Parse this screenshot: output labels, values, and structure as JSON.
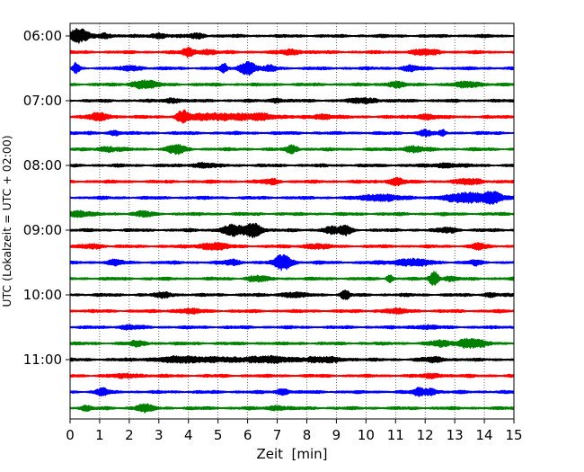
{
  "chart_data": {
    "type": "line",
    "title": "",
    "xlabel": "Zeit  [min]",
    "ylabel": "UTC (Lokalzeit = UTC + 02:00)",
    "xlim": [
      0,
      15
    ],
    "x_ticks": [
      0,
      1,
      2,
      3,
      4,
      5,
      6,
      7,
      8,
      9,
      10,
      11,
      12,
      13,
      14,
      15
    ],
    "y_tick_labels": [
      "06:00",
      "07:00",
      "08:00",
      "09:00",
      "10:00",
      "11:00"
    ],
    "y_tick_rows": [
      0,
      4,
      8,
      12,
      16,
      20
    ],
    "grid": {
      "vertical": true,
      "style": "dotted"
    },
    "row_interval_minutes": 15,
    "row_start": "06:00",
    "row_colors": [
      "#000000",
      "#ff0000",
      "#0000ff",
      "#008000"
    ],
    "series": [
      {
        "start": "06:00",
        "color": "#000000",
        "bursts": [
          [
            0.3,
            0.35,
            6.0
          ],
          [
            1.2,
            0.2,
            2.5
          ],
          [
            3.0,
            0.3,
            2.0
          ],
          [
            4.3,
            0.3,
            2.0
          ]
        ]
      },
      {
        "start": "06:15",
        "color": "#ff0000",
        "bursts": [
          [
            4.0,
            0.2,
            4.0
          ],
          [
            4.6,
            0.3,
            2.0
          ],
          [
            7.5,
            0.4,
            2.0
          ],
          [
            12.0,
            0.5,
            2.0
          ]
        ]
      },
      {
        "start": "06:30",
        "color": "#0000ff",
        "bursts": [
          [
            0.2,
            0.1,
            5.0
          ],
          [
            2.1,
            0.3,
            2.0
          ],
          [
            5.2,
            0.1,
            4.0
          ],
          [
            6.0,
            0.3,
            6.0
          ],
          [
            6.8,
            0.2,
            2.5
          ],
          [
            11.5,
            0.3,
            2.0
          ]
        ]
      },
      {
        "start": "06:45",
        "color": "#008000",
        "bursts": [
          [
            2.5,
            0.4,
            4.0
          ],
          [
            11.0,
            0.3,
            2.5
          ],
          [
            13.5,
            0.5,
            2.0
          ]
        ]
      },
      {
        "start": "07:00",
        "color": "#000000",
        "bursts": [
          [
            3.5,
            0.3,
            2.0
          ],
          [
            7.0,
            0.2,
            2.0
          ],
          [
            10.0,
            0.5,
            2.0
          ]
        ]
      },
      {
        "start": "07:15",
        "color": "#ff0000",
        "bursts": [
          [
            1.0,
            0.4,
            3.0
          ],
          [
            3.8,
            0.2,
            5.0
          ],
          [
            5.0,
            1.0,
            3.0
          ],
          [
            6.5,
            0.5,
            2.5
          ],
          [
            8.5,
            0.4,
            2.0
          ],
          [
            12.0,
            0.4,
            2.0
          ]
        ]
      },
      {
        "start": "07:30",
        "color": "#0000ff",
        "bursts": [
          [
            1.5,
            0.2,
            2.0
          ],
          [
            12.0,
            0.2,
            3.0
          ],
          [
            12.6,
            0.1,
            2.5
          ]
        ]
      },
      {
        "start": "07:45",
        "color": "#008000",
        "bursts": [
          [
            1.3,
            0.4,
            2.0
          ],
          [
            3.6,
            0.3,
            4.0
          ],
          [
            7.5,
            0.2,
            3.5
          ],
          [
            11.6,
            0.4,
            2.5
          ]
        ]
      },
      {
        "start": "08:00",
        "color": "#000000",
        "bursts": [
          [
            4.5,
            0.4,
            2.0
          ],
          [
            12.7,
            0.4,
            2.0
          ]
        ]
      },
      {
        "start": "08:15",
        "color": "#ff0000",
        "bursts": [
          [
            6.8,
            0.3,
            2.0
          ],
          [
            11.0,
            0.3,
            3.0
          ],
          [
            13.5,
            0.5,
            2.0
          ]
        ]
      },
      {
        "start": "08:30",
        "color": "#0000ff",
        "bursts": [
          [
            10.5,
            0.6,
            3.0
          ],
          [
            13.5,
            0.8,
            4.5
          ],
          [
            14.3,
            0.3,
            3.5
          ]
        ]
      },
      {
        "start": "08:45",
        "color": "#008000",
        "bursts": [
          [
            0.3,
            0.4,
            2.5
          ],
          [
            2.5,
            0.3,
            2.0
          ]
        ]
      },
      {
        "start": "09:00",
        "color": "#000000",
        "bursts": [
          [
            5.5,
            0.4,
            4.5
          ],
          [
            6.2,
            0.3,
            6.0
          ],
          [
            8.8,
            0.3,
            2.5
          ],
          [
            9.3,
            0.2,
            4.5
          ],
          [
            12.8,
            0.3,
            2.0
          ]
        ]
      },
      {
        "start": "09:15",
        "color": "#ff0000",
        "bursts": [
          [
            0.8,
            0.3,
            2.0
          ],
          [
            4.8,
            0.5,
            3.0
          ],
          [
            8.3,
            0.4,
            2.0
          ],
          [
            13.8,
            0.2,
            2.5
          ]
        ]
      },
      {
        "start": "09:30",
        "color": "#0000ff",
        "bursts": [
          [
            1.5,
            0.3,
            2.0
          ],
          [
            5.5,
            0.3,
            2.0
          ],
          [
            7.2,
            0.3,
            7.0
          ],
          [
            11.5,
            0.7,
            3.0
          ],
          [
            13.7,
            0.2,
            2.0
          ]
        ]
      },
      {
        "start": "09:45",
        "color": "#008000",
        "bursts": [
          [
            6.3,
            0.3,
            2.5
          ],
          [
            10.8,
            0.1,
            4.0
          ],
          [
            12.3,
            0.15,
            7.0
          ],
          [
            12.8,
            0.2,
            2.0
          ]
        ]
      },
      {
        "start": "10:00",
        "color": "#000000",
        "bursts": [
          [
            3.2,
            0.3,
            2.0
          ],
          [
            7.5,
            0.4,
            2.0
          ],
          [
            9.3,
            0.15,
            4.0
          ],
          [
            14.2,
            0.2,
            2.0
          ]
        ]
      },
      {
        "start": "10:15",
        "color": "#ff0000",
        "bursts": [
          [
            4.0,
            0.5,
            1.5
          ],
          [
            11.0,
            0.5,
            1.5
          ]
        ]
      },
      {
        "start": "10:30",
        "color": "#0000ff",
        "bursts": [
          [
            2.0,
            0.4,
            1.5
          ],
          [
            12.0,
            0.4,
            1.5
          ]
        ]
      },
      {
        "start": "10:45",
        "color": "#008000",
        "bursts": [
          [
            2.3,
            0.3,
            2.0
          ],
          [
            13.5,
            0.5,
            4.0
          ],
          [
            12.5,
            0.3,
            2.5
          ]
        ]
      },
      {
        "start": "11:00",
        "color": "#000000",
        "bursts": [
          [
            4.0,
            1.2,
            2.5
          ],
          [
            6.5,
            1.0,
            2.5
          ],
          [
            8.5,
            0.8,
            2.0
          ],
          [
            12.3,
            0.4,
            2.0
          ]
        ]
      },
      {
        "start": "11:15",
        "color": "#ff0000",
        "bursts": [
          [
            2.0,
            0.5,
            1.5
          ],
          [
            12.3,
            0.3,
            2.0
          ]
        ]
      },
      {
        "start": "11:30",
        "color": "#0000ff",
        "bursts": [
          [
            1.1,
            0.2,
            3.0
          ],
          [
            7.2,
            0.2,
            3.0
          ],
          [
            11.8,
            0.2,
            3.5
          ],
          [
            12.2,
            0.2,
            3.0
          ]
        ]
      },
      {
        "start": "11:45",
        "color": "#008000",
        "bursts": [
          [
            2.5,
            0.3,
            3.0
          ],
          [
            0.5,
            0.2,
            2.0
          ],
          [
            7.0,
            0.3,
            2.0
          ]
        ]
      }
    ]
  }
}
